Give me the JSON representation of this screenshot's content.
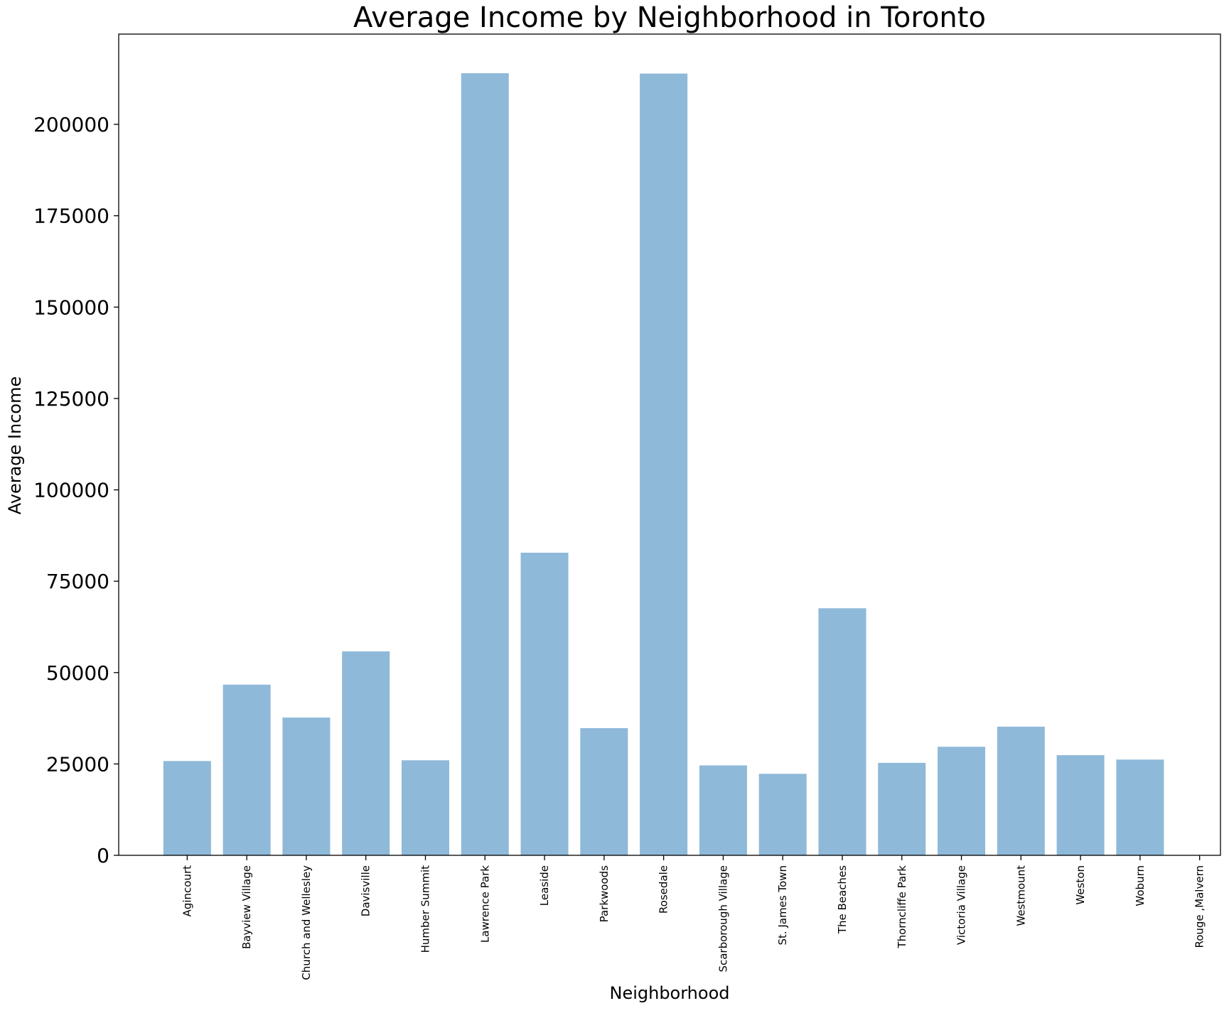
{
  "chart_data": {
    "type": "bar",
    "title": "Average Income by Neighborhood in Toronto",
    "xlabel": "Neighborhood",
    "ylabel": "Average Income",
    "categories": [
      "Agincourt",
      "Bayview Village",
      "Church and Wellesley",
      "Davisville",
      "Humber Summit",
      "Lawrence Park",
      "Leaside",
      "Parkwoods",
      "Rosedale",
      "Scarborough Village",
      "St. James Town",
      "The Beaches",
      "Thorncliffe Park",
      "Victoria Village",
      "Westmount",
      "Weston",
      "Woburn",
      "Rouge ,Malvern"
    ],
    "values": [
      25800,
      46700,
      37700,
      55800,
      26000,
      214000,
      82800,
      34800,
      213900,
      24600,
      22300,
      67600,
      25300,
      29700,
      35200,
      27400,
      26200,
      0
    ],
    "yticks": [
      0,
      25000,
      50000,
      75000,
      100000,
      125000,
      150000,
      175000,
      200000
    ],
    "ylim": [
      0,
      224700
    ],
    "bar_color": "#8fb9d9",
    "grid": false,
    "legend": "none"
  }
}
